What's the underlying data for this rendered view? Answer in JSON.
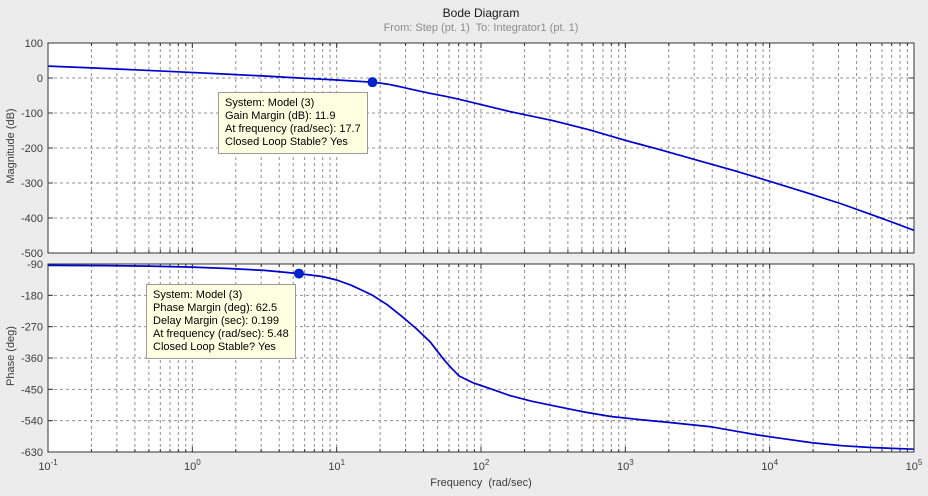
{
  "header": {
    "title": "Bode Diagram",
    "subtitle": "From: Step (pt. 1)  To: Integrator1 (pt. 1)"
  },
  "colors": {
    "figure_bg": "#ececec",
    "plot_bg": "#ffffff",
    "border": "#333333",
    "grid": "#909090",
    "curve": "#0000cd",
    "marker": "#0022cc",
    "tick_text": "#3c3c3c",
    "datatip_bg": "#ffffe1",
    "datatip_border": "#9a9a9a",
    "subtitle_text": "#8c8c8c"
  },
  "annotations": [
    {
      "id": "gain-margin-datatip",
      "lines": [
        "System: Model (3)",
        "Gain Margin (dB): 11.9",
        "At frequency (rad/sec): 17.7",
        "Closed Loop Stable? Yes"
      ]
    },
    {
      "id": "phase-margin-datatip",
      "lines": [
        "System: Model (3)",
        "Phase Margin (deg): 62.5",
        "Delay Margin (sec): 0.199",
        "At frequency (rad/sec): 5.48",
        "Closed Loop Stable? Yes"
      ]
    }
  ],
  "chart_data": [
    {
      "type": "line",
      "title": "Bode Diagram",
      "subtitle": "From: Step (pt. 1)  To: Integrator1 (pt. 1)",
      "ylabel": "Magnitude (dB)",
      "xlabel": "Frequency  (rad/sec)",
      "xscale": "log",
      "xlim": [
        0.1,
        100000
      ],
      "xtick_exponents": [
        -1,
        0,
        1,
        2,
        3,
        4,
        5
      ],
      "ylim": [
        -500,
        100
      ],
      "yticks": [
        100,
        0,
        -100,
        -200,
        -300,
        -400,
        -500
      ],
      "grid": true,
      "legend": "none",
      "series": [
        {
          "name": "Model (3)",
          "log10_x": [
            -1,
            -0.7,
            -0.4,
            -0.1,
            0.2,
            0.5,
            0.739,
            0.9,
            1.0,
            1.1,
            1.248,
            1.3,
            1.35,
            1.4,
            1.45,
            1.5,
            1.55,
            1.65,
            1.75,
            1.85,
            2.0,
            2.2,
            2.5,
            2.75,
            3.0,
            3.25,
            3.5,
            3.75,
            4.0,
            4.25,
            4.5,
            4.75,
            5.0
          ],
          "y": [
            34,
            28.8,
            23.3,
            17.6,
            11.8,
            5.8,
            0,
            -3.5,
            -5.8,
            -8.3,
            -11.9,
            -14.5,
            -17.5,
            -21.5,
            -26,
            -30.5,
            -35,
            -44,
            -52,
            -61,
            -76,
            -96,
            -122,
            -148,
            -178,
            -206,
            -235,
            -264,
            -295,
            -327,
            -360,
            -397,
            -435
          ]
        }
      ],
      "marker_point": {
        "freq_rad_sec": 17.7,
        "value": -11.9,
        "meaning": "gain margin 11.9 dB"
      }
    },
    {
      "type": "line",
      "ylabel": "Phase (deg)",
      "xlabel": "Frequency  (rad/sec)",
      "xscale": "log",
      "xlim": [
        0.1,
        100000
      ],
      "xtick_exponents": [
        -1,
        0,
        1,
        2,
        3,
        4,
        5
      ],
      "ylim": [
        -630,
        -90
      ],
      "yticks": [
        -90,
        -180,
        -270,
        -360,
        -450,
        -540,
        -630
      ],
      "grid": true,
      "legend": "none",
      "series": [
        {
          "name": "Model (3)",
          "log10_x": [
            -1,
            -0.6,
            -0.3,
            0,
            0.25,
            0.5,
            0.739,
            0.9,
            1.0,
            1.1,
            1.2,
            1.248,
            1.35,
            1.45,
            1.55,
            1.65,
            1.7,
            1.75,
            1.8,
            1.85,
            1.95,
            2.05,
            2.2,
            2.35,
            2.5,
            2.7,
            2.9,
            3.1,
            3.3,
            3.6,
            3.9,
            4.1,
            4.3,
            4.5,
            4.7,
            5.0
          ],
          "y": [
            -94,
            -94.5,
            -96,
            -99,
            -103,
            -108.5,
            -117.5,
            -126,
            -136,
            -151,
            -170,
            -180,
            -207,
            -240,
            -275,
            -315,
            -342,
            -368,
            -391,
            -412,
            -432,
            -446,
            -468,
            -484,
            -497,
            -514,
            -528,
            -537,
            -545,
            -558,
            -580,
            -592,
            -604,
            -612,
            -617,
            -622
          ]
        }
      ],
      "marker_point": {
        "freq_rad_sec": 5.48,
        "value": -117.5,
        "meaning": "phase margin 62.5 deg"
      }
    }
  ]
}
